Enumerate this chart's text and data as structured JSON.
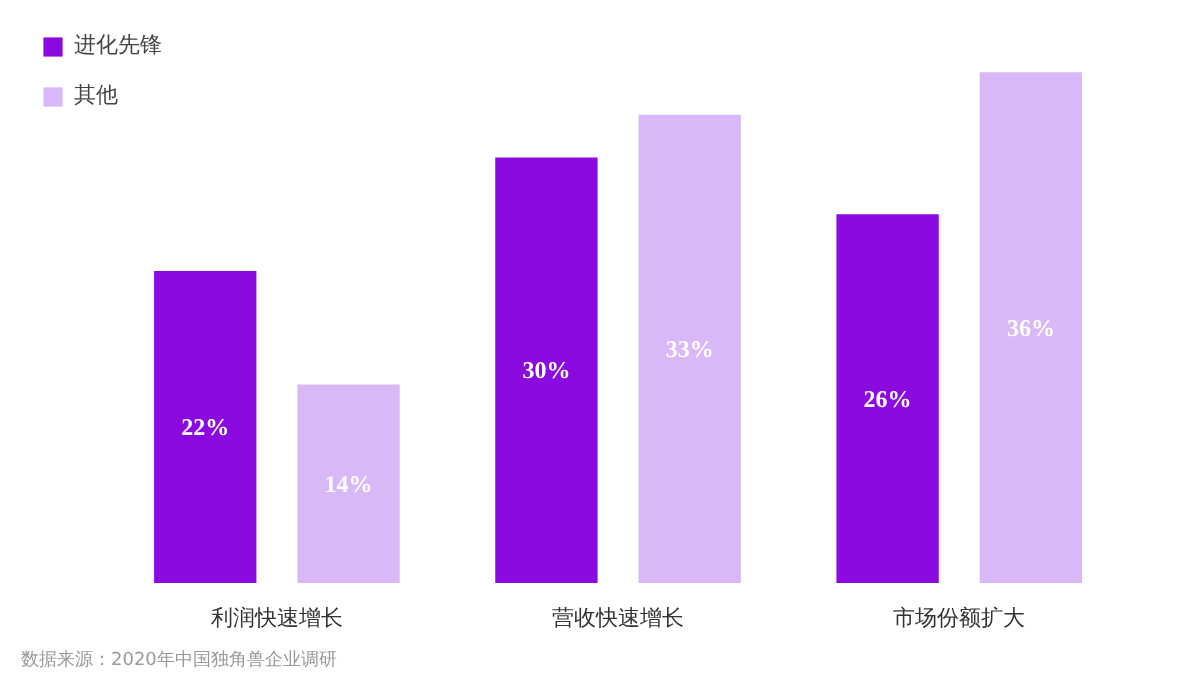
{
  "chart_data": {
    "type": "bar",
    "categories": [
      "利润快速增长",
      "营收快速增长",
      "市场份额扩大"
    ],
    "series": [
      {
        "name": "进化先锋",
        "color": "#8a0ae0",
        "values": [
          22,
          30,
          26
        ],
        "value_labels": [
          "22%",
          "30%",
          "26%"
        ]
      },
      {
        "name": "其他",
        "color": "#d9b8f7",
        "values": [
          14,
          33,
          36
        ],
        "value_labels": [
          "14%",
          "33%",
          "36%"
        ]
      }
    ],
    "legend": "top left",
    "grid": false,
    "annotations": [
      "数据来源：2020年中国独角兽企业调研"
    ]
  }
}
